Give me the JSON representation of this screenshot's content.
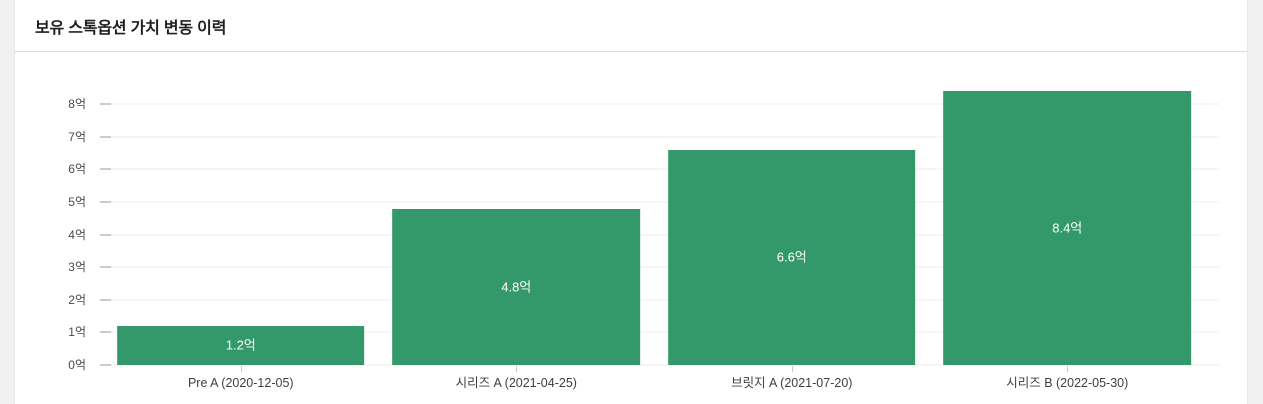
{
  "card": {
    "title": "보유 스톡옵션 가치 변동 이력"
  },
  "colors": {
    "bar": "#34996a",
    "bar_value_text": "#ffffff",
    "page_background": "#f1f1f2",
    "card_background": "#ffffff",
    "gridline": "#ededed",
    "header_divider": "#dcdcdc"
  },
  "chart_data": {
    "type": "bar",
    "title": "보유 스톡옵션 가치 변동 이력",
    "categories": [
      "Pre A (2020-12-05)",
      "시리즈 A (2021-04-25)",
      "브릿지 A (2021-07-20)",
      "시리즈 B (2022-05-30)"
    ],
    "values": [
      1.2,
      4.8,
      6.6,
      8.4
    ],
    "value_labels": [
      "1.2억",
      "4.8억",
      "6.6억",
      "8.4억"
    ],
    "unit": "억",
    "xlabel": "",
    "ylabel": "",
    "y_ticks": [
      {
        "value": 0,
        "label": "0억"
      },
      {
        "value": 1,
        "label": "1억"
      },
      {
        "value": 2,
        "label": "2억"
      },
      {
        "value": 3,
        "label": "3억"
      },
      {
        "value": 4,
        "label": "4억"
      },
      {
        "value": 5,
        "label": "5억"
      },
      {
        "value": 6,
        "label": "6억"
      },
      {
        "value": 7,
        "label": "7억"
      },
      {
        "value": 8,
        "label": "8억"
      }
    ],
    "ylim": [
      0,
      8.5
    ],
    "grid": true,
    "legend": false,
    "bar_color": "#34996a"
  }
}
